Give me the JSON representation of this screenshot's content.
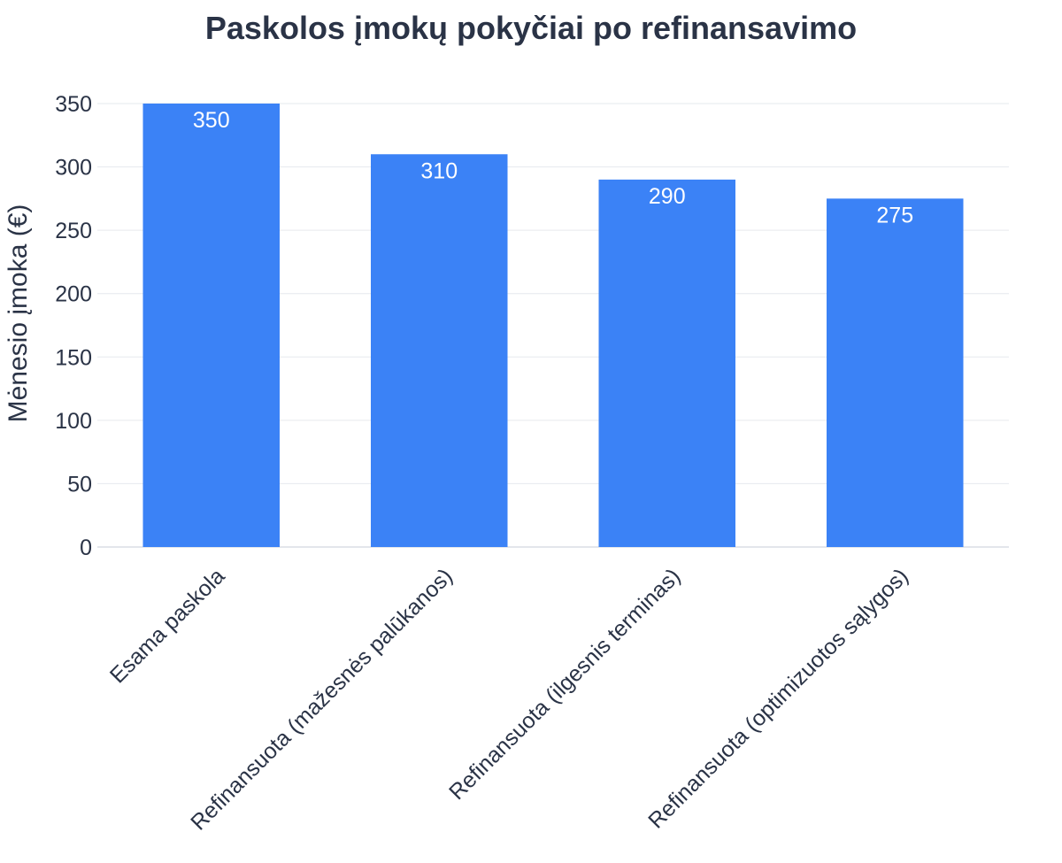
{
  "chart_data": {
    "type": "bar",
    "title": "Paskolos įmokų pokyčiai po refinansavimo",
    "xlabel": "",
    "ylabel": "Mėnesio įmoka (€)",
    "categories": [
      "Esama paskola",
      "Refinansuota (mažesnės palūkanos)",
      "Refinansuota (ilgesnis terminas)",
      "Refinansuota (optimizuotos sąlygos)"
    ],
    "values": [
      350,
      310,
      290,
      275
    ],
    "data_labels": [
      "350",
      "310",
      "290",
      "275"
    ],
    "ylim": [
      0,
      350
    ],
    "yticks": [
      0,
      50,
      100,
      150,
      200,
      250,
      300,
      350
    ],
    "grid": true,
    "legend": "none",
    "bar_color": "#3b82f6"
  }
}
